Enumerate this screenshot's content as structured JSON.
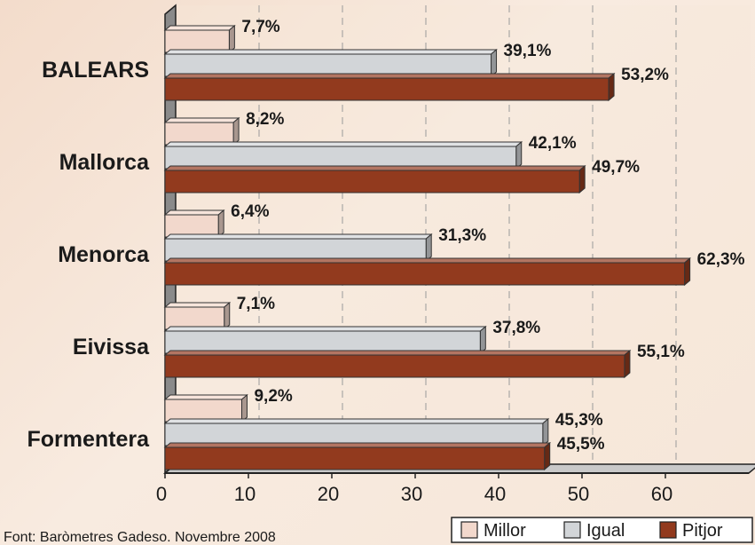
{
  "chart_data": {
    "type": "bar",
    "orientation": "horizontal",
    "categories": [
      "BALEARS",
      "Mallorca",
      "Menorca",
      "Eivissa",
      "Formentera"
    ],
    "series": [
      {
        "name": "Millor",
        "color": "#f2d8cc",
        "values": [
          7.7,
          8.2,
          6.4,
          7.1,
          9.2
        ],
        "labels": [
          "7,7%",
          "8,2%",
          "6,4%",
          "7,1%",
          "9,2%"
        ]
      },
      {
        "name": "Igual",
        "color": "#d2d5d8",
        "values": [
          39.1,
          42.1,
          31.3,
          37.8,
          45.3
        ],
        "labels": [
          "39,1%",
          "42,1%",
          "31,3%",
          "37,8%",
          "45,3%"
        ]
      },
      {
        "name": "Pitjor",
        "color": "#923a1e",
        "values": [
          53.2,
          49.7,
          62.3,
          55.1,
          45.5
        ],
        "labels": [
          "53,2%",
          "49,7%",
          "62,3%",
          "55,1%",
          "45,5%"
        ]
      }
    ],
    "xlim": [
      0,
      70
    ],
    "ticks": [
      0,
      10,
      20,
      30,
      40,
      50,
      60
    ],
    "grid": true,
    "legend": "bottom-right"
  },
  "source": "Font: Baròmetres Gadeso. Novembre 2008"
}
